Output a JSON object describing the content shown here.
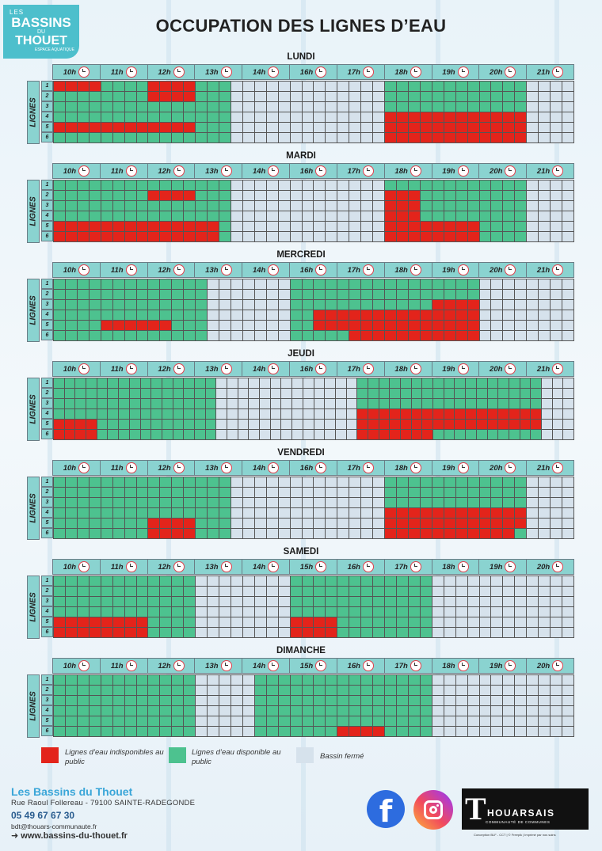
{
  "logo": {
    "line1": "LES",
    "line2": "BASSINS",
    "line3": "DU",
    "line4": "THOUET",
    "line5": "ESPACE AQUATIQUE"
  },
  "title": "OCCUPATION DES LIGNES D’EAU",
  "lines_label": "LIGNES",
  "colors": {
    "unavailable": "#e3241b",
    "available": "#4dc28f",
    "closed": "#d6e2ec",
    "header": "#8ad3d0"
  },
  "days": [
    {
      "name": "LUNDI",
      "hours": [
        "10h",
        "11h",
        "12h",
        "13h",
        "14h",
        "16h",
        "17h",
        "18h",
        "19h",
        "20h",
        "21h"
      ],
      "rows": [
        "RRRRGGGGRRRRGGGFFFFFFFFFFFFFGGGGGGGGGGGGFFFF",
        "GGGGGGGGRRRRGGGFFFFFFFFFFFFFGGGGGGGGGGGGFFFF",
        "GGGGGGGGGGGGGGGFFFFFFFFFFFFFGGGGGGGGGGGGFFFF",
        "GGGGGGGGGGGGGGGFFFFFFFFFFFFFRRRRRRRRRRRRFFFF",
        "RRRRRRRRRRRRGGGFFFFFFFFFFFFFRRRRRRRRRRRRFFFF",
        "GGGGGGGGGGGGGGGFFFFFFFFFFFFFRRRRRRRRRRRRFFFF"
      ]
    },
    {
      "name": "MARDI",
      "hours": [
        "10h",
        "11h",
        "12h",
        "13h",
        "14h",
        "16h",
        "17h",
        "18h",
        "19h",
        "20h",
        "21h"
      ],
      "rows": [
        "GGGGGGGGGGGGGGGFFFFFFFFFFFFFGGGGGGGGGGGGFFFF",
        "GGGGGGGGRRRRGGGFFFFFFFFFFFFFRRRGGGGGGGGGFFFF",
        "GGGGGGGGGGGGGGGFFFFFFFFFFFFFRRRGGGGGGGGGFFFF",
        "GGGGGGGGGGGGGGGFFFFFFFFFFFFFRRRGGGGGGGGGFFFF",
        "RRRRRRRRRRRRRRGFFFFFFFFFFFFFRRRRRRRRGGGGFFFF",
        "RRRRRRRRRRRRRRGFFFFFFFFFFFFFRRRRRRRRGGGGFFFF"
      ]
    },
    {
      "name": "MERCREDI",
      "hours": [
        "10h",
        "11h",
        "12h",
        "13h",
        "14h",
        "16h",
        "17h",
        "18h",
        "19h",
        "20h",
        "21h"
      ],
      "rows": [
        "GGGGGGGGGGGGGFFFFFFFGGGGGGGGGGGGGGGGFFFFFFFF",
        "GGGGGGGGGGGGGFFFFFFFGGGGGGGGGGGGGGGGFFFFFFFF",
        "GGGGGGGGGGGGGFFFFFFFGGGGGGGGGGGGRRRRFFFFFFFF",
        "GGGGGGGGGGGGGFFFFFFFGGRRRRRRRRRRRRRRFFFFFFFF",
        "GGGGRRRRRRGGGFFFFFFFGGRRRRRRRRRRRRRRFFFFFFFF",
        "GGGGGGGGGGGGGFFFFFFFGGGGGRRRRRRRRRRRFFFFFFFF"
      ]
    },
    {
      "name": "JEUDI",
      "hours": [
        "10h",
        "11h",
        "12h",
        "13h",
        "14h",
        "16h",
        "17h",
        "18h",
        "19h",
        "20h",
        "21h"
      ],
      "rows": [
        "GGGGGGGGGGGGGGGFFFFFFFFFFFFFGGGGGGGGGGGGGGGGGFFF",
        "GGGGGGGGGGGGGGGFFFFFFFFFFFFFGGGGGGGGGGGGGGGGGFFF",
        "GGGGGGGGGGGGGGGFFFFFFFFFFFFFGGGGGGGGGGGGGGGGGFFF",
        "GGGGGGGGGGGGGGGFFFFFFFFFFFFFRRRRRRRRRRRRRRRRRFFF",
        "RRRRGGGGGGGGGGGFFFFFFFFFFFFFRRRRRRRRRRRRRRRRRFFF",
        "RRRRGGGGGGGGGGGFFFFFFFFFFFFFRRRRRRRGGGGGGGGGGFFF"
      ]
    },
    {
      "name": "VENDREDI",
      "hours": [
        "10h",
        "11h",
        "12h",
        "13h",
        "14h",
        "16h",
        "17h",
        "18h",
        "19h",
        "20h",
        "21h"
      ],
      "rows": [
        "GGGGGGGGGGGGGGGFFFFFFFFFFFFFGGGGGGGGGGGGFFFF",
        "GGGGGGGGGGGGGGGFFFFFFFFFFFFFGGGGGGGGGGGGFFFF",
        "GGGGGGGGGGGGGGGFFFFFFFFFFFFFGGGGGGGGGGGGFFFF",
        "GGGGGGGGGGGGGGGFFFFFFFFFFFFFRRRRRRRRRRRRFFFF",
        "GGGGGGGGRRRRGGGFFFFFFFFFFFFFRRRRRRRRRRRRFFFF",
        "GGGGGGGGRRRRGGGFFFFFFFFFFFFFRRRRRRRRRRRGFFFF"
      ]
    },
    {
      "name": "SAMEDI",
      "hours": [
        "10h",
        "11h",
        "12h",
        "13h",
        "14h",
        "15h",
        "16h",
        "17h",
        "18h",
        "19h",
        "20h"
      ],
      "rows": [
        "GGGGGGGGGGGGFFFFFFFFGGGGGGGGGGGGFFFFFFFFFFFF",
        "GGGGGGGGGGGGFFFFFFFFGGGGGGGGGGGGFFFFFFFFFFFF",
        "GGGGGGGGGGGGFFFFFFFFGGGGGGGGGGGGFFFFFFFFFFFF",
        "GGGGGGGGGGGGFFFFFFFFGGGGGGGGGGGGFFFFFFFFFFFF",
        "RRRRRRRRGGGGFFFFFFFFRRRRGGGGGGGGFFFFFFFFFFFF",
        "RRRRRRRRGGGGFFFFFFFFRRRRGGGGGGGGFFFFFFFFFFFF"
      ]
    },
    {
      "name": "DIMANCHE",
      "hours": [
        "10h",
        "11h",
        "12h",
        "13h",
        "14h",
        "15h",
        "16h",
        "17h",
        "18h",
        "19h",
        "20h"
      ],
      "rows": [
        "GGGGGGGGGGGGFFFFFGGGGGGGGGGGGGGGFFFFFFFFFFFF",
        "GGGGGGGGGGGGFFFFFGGGGGGGGGGGGGGGFFFFFFFFFFFF",
        "GGGGGGGGGGGGFFFFFGGGGGGGGGGGGGGGFFFFFFFFFFFF",
        "GGGGGGGGGGGGFFFFFGGGGGGGGGGGGGGGFFFFFFFFFFFF",
        "GGGGGGGGGGGGFFFFFGGGGGGGGGGGGGGGFFFFFFFFFFFF",
        "GGGGGGGGGGGGFFFFFGGGGGGGRRRRGGGGFFFFFFFFFFFF"
      ]
    }
  ],
  "legend": {
    "unavailable": "Lignes d’eau indisponibles au public",
    "available": "Lignes d’eau disponible au public",
    "closed": "Bassin fermé"
  },
  "footer": {
    "name": "Les Bassins du Thouet",
    "address": "Rue Raoul Follereau - 79100  SAINTE-RADEGONDE",
    "phone": "05 49 67 67 30",
    "email": "bdt@thouars-communaute.fr",
    "web": "www.bassins-du-thouet.fr"
  },
  "partner": {
    "mark": "T",
    "word": "HOUARSAIS",
    "sub": "COMMUNAUTÉ DE COMMUNES"
  },
  "credit": "Conception BLF - CCT | © Freepik | Imprimé par nos soins",
  "social": {
    "facebook": "facebook-icon",
    "instagram": "instagram-icon"
  }
}
